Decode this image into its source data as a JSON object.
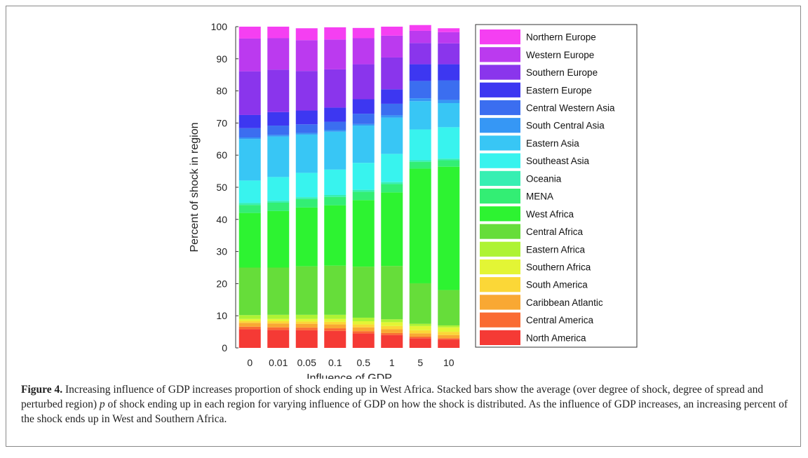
{
  "caption": {
    "label": "Figure 4.",
    "text_part1": " Increasing influence of GDP increases proportion of shock ending up in West Africa. Stacked bars show the average (over degree of shock, degree of spread and perturbed region) ",
    "p": "p",
    "text_part2": " of shock ending up in each region for varying influence of GDP on how the shock is distributed. As the influence of GDP increases, an increasing percent of the shock ends up in West and Southern Africa."
  },
  "chart_data": {
    "type": "bar",
    "stacked": true,
    "xlabel": "Influence of GDP",
    "ylabel": "Percent of shock in region",
    "ylim": [
      0,
      100
    ],
    "yticks": [
      0,
      10,
      20,
      30,
      40,
      50,
      60,
      70,
      80,
      90,
      100
    ],
    "categories": [
      "0",
      "0.01",
      "0.05",
      "0.1",
      "0.5",
      "1",
      "5",
      "10"
    ],
    "legend_position": "right",
    "series": [
      {
        "name": "North America",
        "color": "#f53a35",
        "values": [
          5.8,
          5.6,
          5.5,
          5.3,
          4.5,
          4.0,
          3.0,
          2.6
        ]
      },
      {
        "name": "Central America",
        "color": "#fa6b32",
        "values": [
          0.8,
          0.8,
          0.8,
          0.8,
          0.7,
          0.6,
          0.5,
          0.4
        ]
      },
      {
        "name": "Caribbean Atlantic",
        "color": "#f9a833",
        "values": [
          1.2,
          1.2,
          1.2,
          1.2,
          1.2,
          1.2,
          1.0,
          1.0
        ]
      },
      {
        "name": "South America",
        "color": "#fbd737",
        "values": [
          0.6,
          0.7,
          0.7,
          0.8,
          0.9,
          1.0,
          1.0,
          1.0
        ]
      },
      {
        "name": "Southern Africa",
        "color": "#e3f535",
        "values": [
          0.6,
          0.7,
          0.8,
          0.9,
          1.0,
          1.2,
          1.3,
          1.4
        ]
      },
      {
        "name": "Eastern Africa",
        "color": "#aef334",
        "values": [
          1.2,
          1.3,
          1.3,
          1.3,
          1.1,
          0.9,
          0.7,
          0.6
        ]
      },
      {
        "name": "Central Africa",
        "color": "#66dd3a",
        "values": [
          14.8,
          14.7,
          15.1,
          15.3,
          15.9,
          16.6,
          12.6,
          11.0
        ]
      },
      {
        "name": "West Africa",
        "color": "#2df331",
        "values": [
          17.0,
          17.6,
          18.3,
          18.8,
          20.7,
          22.9,
          35.7,
          38.4
        ]
      },
      {
        "name": "MENA",
        "color": "#33ee74",
        "values": [
          2.5,
          2.6,
          2.6,
          2.6,
          2.6,
          2.6,
          2.1,
          2.0
        ]
      },
      {
        "name": "Oceania",
        "color": "#37efb2",
        "values": [
          0.6,
          0.6,
          0.6,
          0.6,
          0.6,
          0.6,
          0.5,
          0.5
        ]
      },
      {
        "name": "Southeast Asia",
        "color": "#38f3ee",
        "values": [
          7.0,
          7.4,
          7.6,
          7.9,
          8.4,
          8.8,
          9.6,
          9.8
        ]
      },
      {
        "name": "Eastern Asia",
        "color": "#38c6f5",
        "values": [
          12.9,
          12.6,
          11.9,
          11.8,
          11.6,
          11.3,
          8.8,
          7.5
        ]
      },
      {
        "name": "South Central Asia",
        "color": "#3697f5",
        "values": [
          0.5,
          0.5,
          0.5,
          0.5,
          0.5,
          0.7,
          0.9,
          1.0
        ]
      },
      {
        "name": "Central Western Asia",
        "color": "#3b6ef0",
        "values": [
          2.9,
          2.9,
          2.7,
          2.6,
          3.2,
          3.6,
          5.4,
          6.1
        ]
      },
      {
        "name": "Eastern Europe",
        "color": "#3d37f1",
        "values": [
          4.1,
          4.2,
          4.3,
          4.4,
          4.5,
          4.5,
          5.2,
          5.0
        ]
      },
      {
        "name": "Southern Europe",
        "color": "#8a35ec",
        "values": [
          13.6,
          13.2,
          12.3,
          11.9,
          10.9,
          9.9,
          6.6,
          6.5
        ]
      },
      {
        "name": "Western Europe",
        "color": "#bb3aef",
        "values": [
          10.2,
          9.8,
          9.6,
          9.3,
          8.1,
          6.8,
          3.8,
          3.5
        ]
      },
      {
        "name": "Northern Europe",
        "color": "#f53ff2",
        "values": [
          3.7,
          3.6,
          3.7,
          3.8,
          3.2,
          2.8,
          1.8,
          1.2
        ]
      }
    ]
  }
}
